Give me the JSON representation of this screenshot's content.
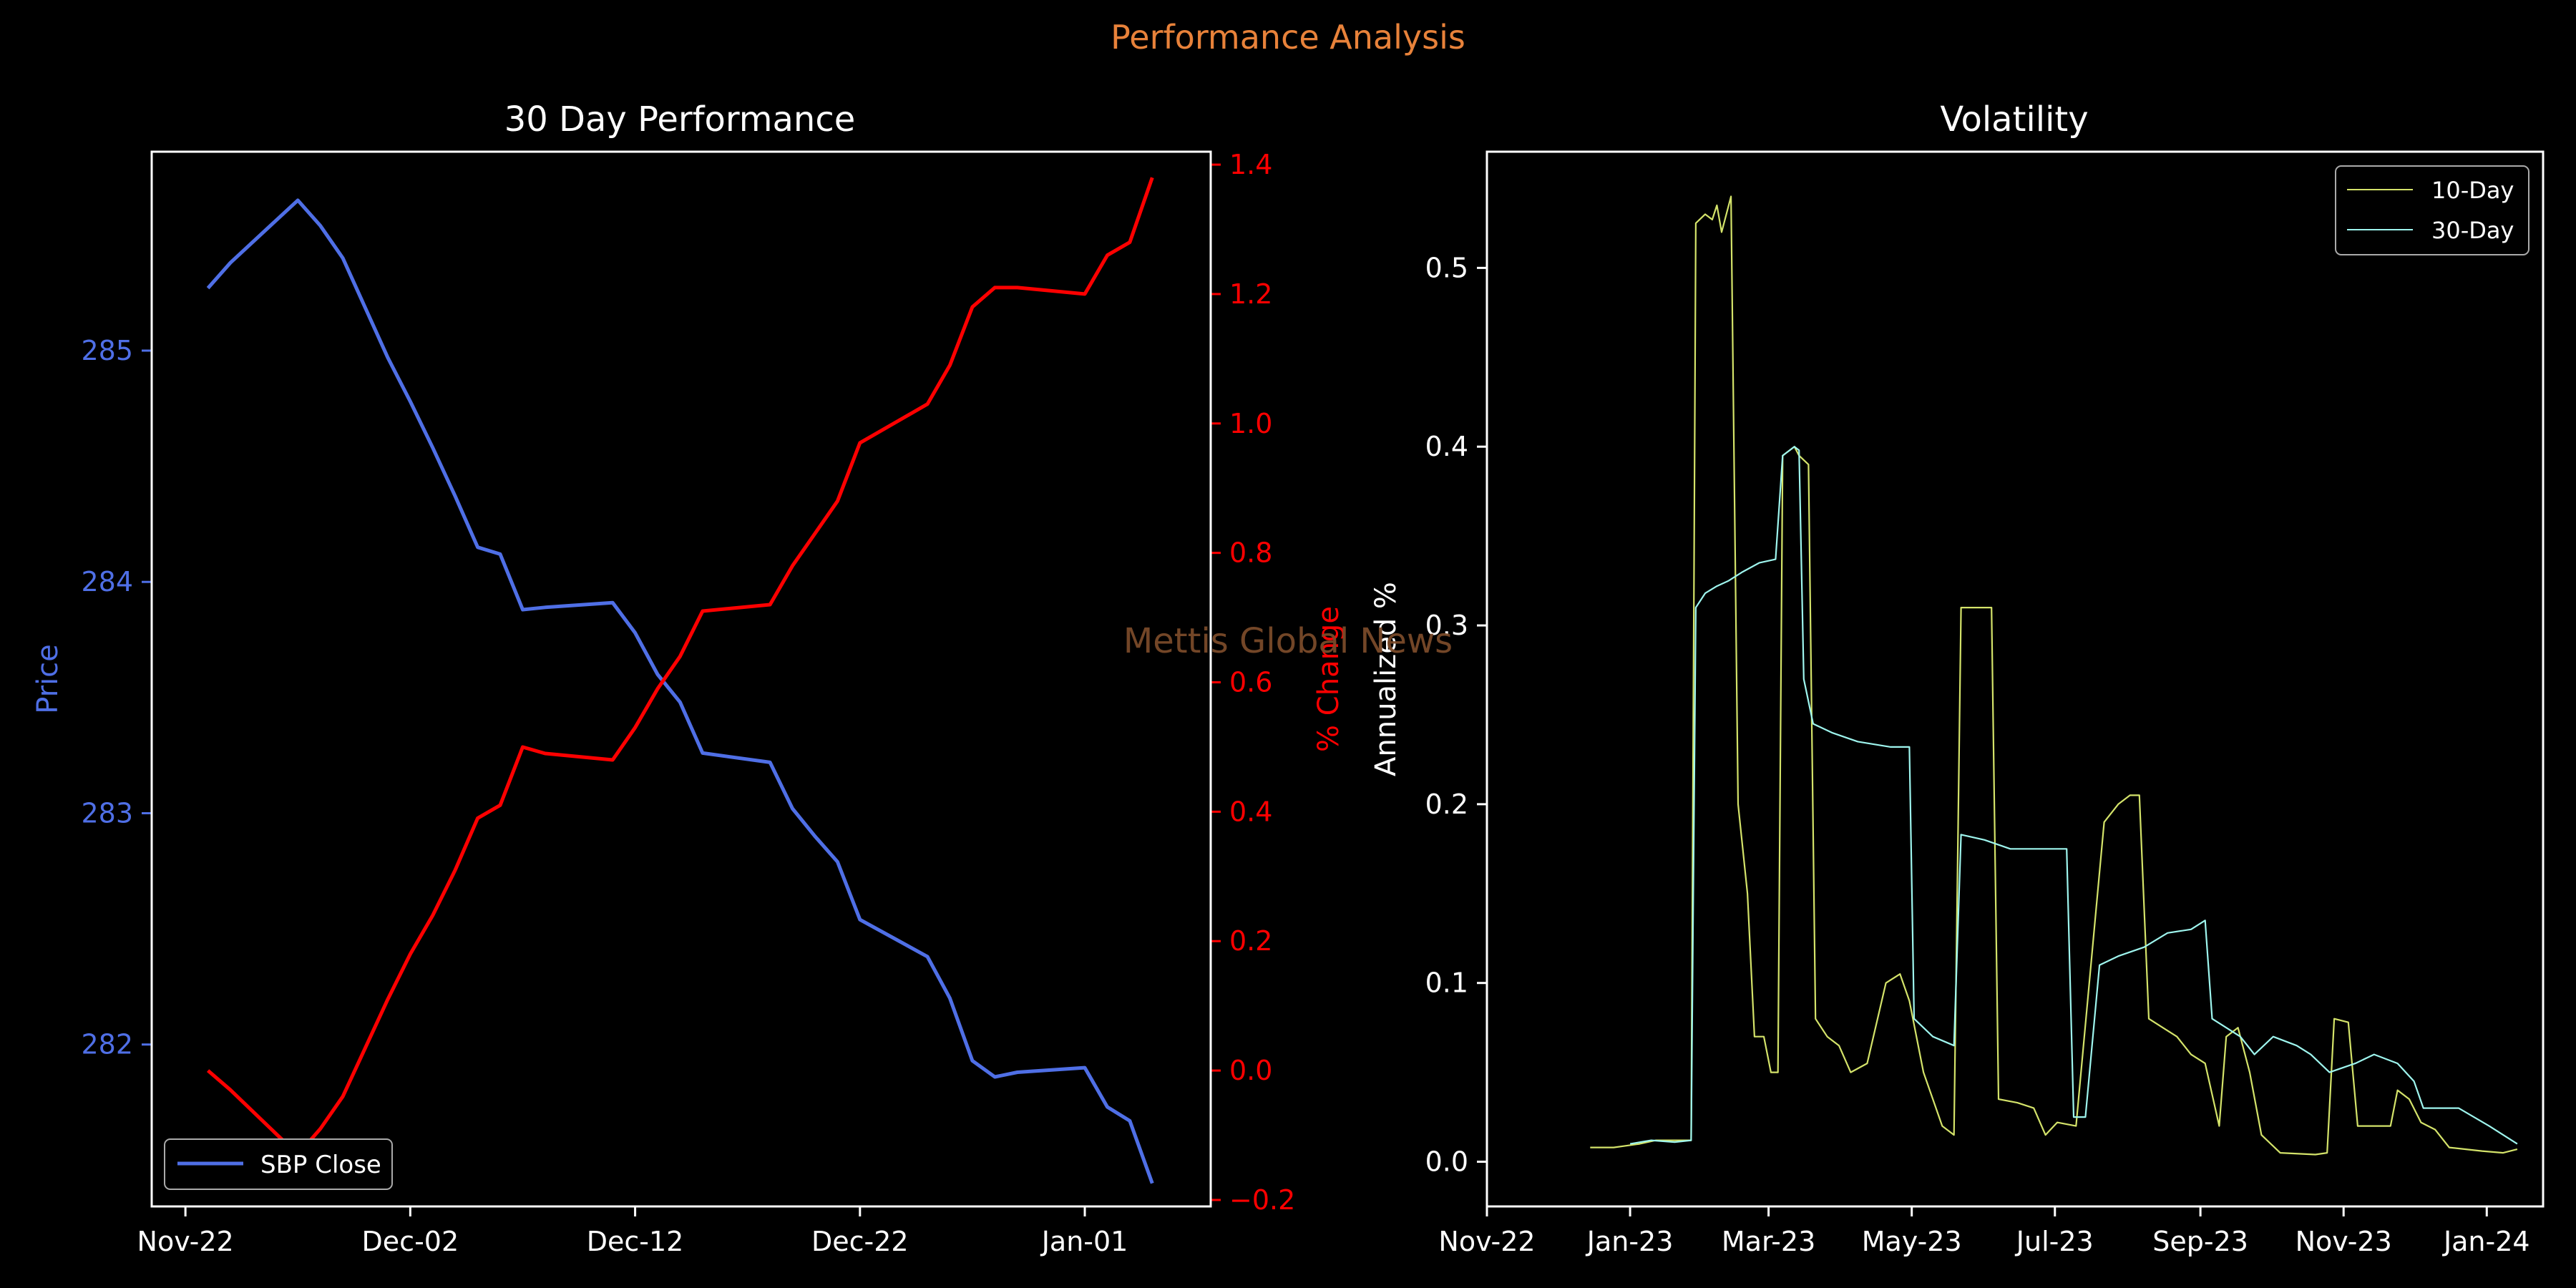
{
  "figure": {
    "suptitle": "Performance Analysis",
    "watermark": "Mettis Global News",
    "colors": {
      "background": "#000000",
      "suptitle": "#e8823a",
      "watermark": "#7a4a2a",
      "price": "#4f6fe6",
      "pct": "#ff0000",
      "vol10": "#d4e36a",
      "vol30": "#9ef5ee",
      "axes": "#ffffff"
    }
  },
  "chart_data": [
    {
      "type": "line",
      "title": "30 Day Performance",
      "xlabel": "",
      "ylabel": "Price",
      "y2label": "% Change",
      "x_ticks": [
        "Nov-22",
        "Dec-02",
        "Dec-12",
        "Dec-22",
        "Jan-01"
      ],
      "x_tick_days": [
        0,
        10,
        20,
        30,
        40
      ],
      "xlim_days": [
        -1.5,
        45.6
      ],
      "ylim": [
        281.3,
        285.86
      ],
      "y_ticks": [
        282,
        283,
        284,
        285
      ],
      "y2lim": [
        -0.21,
        1.42
      ],
      "y2_ticks": [
        -0.2,
        0.0,
        0.2,
        0.4,
        0.6,
        0.8,
        1.0,
        1.2,
        1.4
      ],
      "y2_tick_labels": [
        "−0.2",
        "0.0",
        "0.2",
        "0.4",
        "0.6",
        "0.8",
        "1.0",
        "1.2",
        "1.4"
      ],
      "legend": {
        "position": "lower-left",
        "entries": [
          "SBP Close"
        ]
      },
      "x_days": [
        1,
        2,
        5,
        6,
        7,
        9,
        10,
        11,
        12,
        13,
        14,
        15,
        16,
        19,
        20,
        21,
        22,
        23,
        26,
        27,
        28,
        29,
        30,
        33,
        34,
        35,
        36,
        37,
        40,
        41,
        42,
        43
      ],
      "series": [
        {
          "name": "SBP Close",
          "axis": "left",
          "values": [
            285.27,
            285.38,
            285.65,
            285.54,
            285.4,
            284.97,
            284.78,
            284.58,
            284.37,
            284.15,
            284.12,
            283.88,
            283.89,
            283.91,
            283.78,
            283.6,
            283.48,
            283.26,
            283.22,
            283.02,
            282.9,
            282.79,
            282.54,
            282.38,
            282.2,
            281.93,
            281.86,
            281.88,
            281.9,
            281.73,
            281.67,
            281.4
          ]
        },
        {
          "name": "% Change",
          "axis": "right",
          "values": [
            0.0,
            -0.03,
            -0.13,
            -0.09,
            -0.04,
            0.11,
            0.18,
            0.24,
            0.31,
            0.39,
            0.41,
            0.5,
            0.49,
            0.48,
            0.53,
            0.59,
            0.64,
            0.71,
            0.72,
            0.78,
            0.83,
            0.88,
            0.97,
            1.03,
            1.09,
            1.18,
            1.21,
            1.21,
            1.2,
            1.26,
            1.28,
            1.38
          ]
        }
      ]
    },
    {
      "type": "line",
      "title": "Volatility",
      "xlabel": "",
      "ylabel": "Annualized %",
      "x_ticks": [
        "Nov-22",
        "Jan-23",
        "Mar-23",
        "May-23",
        "Jul-23",
        "Sep-23",
        "Nov-23",
        "Jan-24"
      ],
      "xlim": [
        "2022-11-01",
        "2024-01-25"
      ],
      "ylim": [
        -0.025,
        0.565
      ],
      "y_ticks": [
        0.0,
        0.1,
        0.2,
        0.3,
        0.4,
        0.5
      ],
      "y_tick_labels": [
        "0.0",
        "0.1",
        "0.2",
        "0.3",
        "0.4",
        "0.5"
      ],
      "legend": {
        "position": "top-right",
        "entries": [
          "10-Day",
          "30-Day"
        ]
      },
      "series": [
        {
          "name": "10-Day",
          "points": [
            [
              "2022-12-15",
              0.008
            ],
            [
              "2022-12-25",
              0.008
            ],
            [
              "2023-01-05",
              0.01
            ],
            [
              "2023-01-12",
              0.012
            ],
            [
              "2023-01-20",
              0.012
            ],
            [
              "2023-01-27",
              0.012
            ],
            [
              "2023-01-29",
              0.525
            ],
            [
              "2023-02-02",
              0.53
            ],
            [
              "2023-02-05",
              0.527
            ],
            [
              "2023-02-07",
              0.535
            ],
            [
              "2023-02-09",
              0.52
            ],
            [
              "2023-02-11",
              0.53
            ],
            [
              "2023-02-13",
              0.54
            ],
            [
              "2023-02-16",
              0.2
            ],
            [
              "2023-02-20",
              0.15
            ],
            [
              "2023-02-23",
              0.07
            ],
            [
              "2023-02-27",
              0.07
            ],
            [
              "2023-03-02",
              0.05
            ],
            [
              "2023-03-05",
              0.05
            ],
            [
              "2023-03-07",
              0.395
            ],
            [
              "2023-03-12",
              0.4
            ],
            [
              "2023-03-14",
              0.395
            ],
            [
              "2023-03-18",
              0.39
            ],
            [
              "2023-03-21",
              0.08
            ],
            [
              "2023-03-26",
              0.07
            ],
            [
              "2023-03-31",
              0.065
            ],
            [
              "2023-04-05",
              0.05
            ],
            [
              "2023-04-12",
              0.055
            ],
            [
              "2023-04-20",
              0.1
            ],
            [
              "2023-04-26",
              0.105
            ],
            [
              "2023-04-30",
              0.09
            ],
            [
              "2023-05-06",
              0.05
            ],
            [
              "2023-05-14",
              0.02
            ],
            [
              "2023-05-19",
              0.015
            ],
            [
              "2023-05-22",
              0.31
            ],
            [
              "2023-05-29",
              0.31
            ],
            [
              "2023-06-04",
              0.31
            ],
            [
              "2023-06-07",
              0.035
            ],
            [
              "2023-06-15",
              0.033
            ],
            [
              "2023-06-22",
              0.03
            ],
            [
              "2023-06-27",
              0.015
            ],
            [
              "2023-07-02",
              0.022
            ],
            [
              "2023-07-10",
              0.02
            ],
            [
              "2023-07-22",
              0.19
            ],
            [
              "2023-07-28",
              0.2
            ],
            [
              "2023-08-02",
              0.205
            ],
            [
              "2023-08-06",
              0.205
            ],
            [
              "2023-08-10",
              0.08
            ],
            [
              "2023-08-16",
              0.075
            ],
            [
              "2023-08-22",
              0.07
            ],
            [
              "2023-08-28",
              0.06
            ],
            [
              "2023-09-03",
              0.055
            ],
            [
              "2023-09-09",
              0.02
            ],
            [
              "2023-09-12",
              0.07
            ],
            [
              "2023-09-17",
              0.075
            ],
            [
              "2023-09-22",
              0.05
            ],
            [
              "2023-09-27",
              0.015
            ],
            [
              "2023-10-05",
              0.005
            ],
            [
              "2023-10-20",
              0.004
            ],
            [
              "2023-10-25",
              0.005
            ],
            [
              "2023-10-28",
              0.08
            ],
            [
              "2023-11-03",
              0.078
            ],
            [
              "2023-11-07",
              0.02
            ],
            [
              "2023-11-15",
              0.02
            ],
            [
              "2023-11-21",
              0.02
            ],
            [
              "2023-11-24",
              0.04
            ],
            [
              "2023-11-29",
              0.035
            ],
            [
              "2023-12-04",
              0.022
            ],
            [
              "2023-12-10",
              0.018
            ],
            [
              "2023-12-16",
              0.008
            ],
            [
              "2023-12-30",
              0.006
            ],
            [
              "2024-01-08",
              0.005
            ],
            [
              "2024-01-14",
              0.007
            ]
          ]
        },
        {
          "name": "30-Day",
          "points": [
            [
              "2023-01-01",
              0.01
            ],
            [
              "2023-01-10",
              0.012
            ],
            [
              "2023-01-20",
              0.011
            ],
            [
              "2023-01-27",
              0.012
            ],
            [
              "2023-01-29",
              0.31
            ],
            [
              "2023-02-02",
              0.318
            ],
            [
              "2023-02-07",
              0.322
            ],
            [
              "2023-02-12",
              0.325
            ],
            [
              "2023-02-18",
              0.33
            ],
            [
              "2023-02-25",
              0.335
            ],
            [
              "2023-03-04",
              0.337
            ],
            [
              "2023-03-07",
              0.395
            ],
            [
              "2023-03-12",
              0.4
            ],
            [
              "2023-03-14",
              0.398
            ],
            [
              "2023-03-16",
              0.27
            ],
            [
              "2023-03-20",
              0.245
            ],
            [
              "2023-03-28",
              0.24
            ],
            [
              "2023-04-08",
              0.235
            ],
            [
              "2023-04-22",
              0.232
            ],
            [
              "2023-04-30",
              0.232
            ],
            [
              "2023-05-02",
              0.08
            ],
            [
              "2023-05-10",
              0.07
            ],
            [
              "2023-05-19",
              0.065
            ],
            [
              "2023-05-22",
              0.183
            ],
            [
              "2023-06-01",
              0.18
            ],
            [
              "2023-06-12",
              0.175
            ],
            [
              "2023-06-30",
              0.175
            ],
            [
              "2023-07-06",
              0.175
            ],
            [
              "2023-07-09",
              0.025
            ],
            [
              "2023-07-14",
              0.025
            ],
            [
              "2023-07-20",
              0.11
            ],
            [
              "2023-07-28",
              0.115
            ],
            [
              "2023-08-08",
              0.12
            ],
            [
              "2023-08-18",
              0.128
            ],
            [
              "2023-08-28",
              0.13
            ],
            [
              "2023-09-03",
              0.135
            ],
            [
              "2023-09-06",
              0.08
            ],
            [
              "2023-09-12",
              0.075
            ],
            [
              "2023-09-18",
              0.07
            ],
            [
              "2023-09-24",
              0.06
            ],
            [
              "2023-10-02",
              0.07
            ],
            [
              "2023-10-12",
              0.065
            ],
            [
              "2023-10-18",
              0.06
            ],
            [
              "2023-10-26",
              0.05
            ],
            [
              "2023-11-06",
              0.055
            ],
            [
              "2023-11-14",
              0.06
            ],
            [
              "2023-11-24",
              0.055
            ],
            [
              "2023-12-01",
              0.045
            ],
            [
              "2023-12-05",
              0.03
            ],
            [
              "2023-12-20",
              0.03
            ],
            [
              "2024-01-02",
              0.02
            ],
            [
              "2024-01-14",
              0.01
            ]
          ]
        }
      ]
    }
  ]
}
